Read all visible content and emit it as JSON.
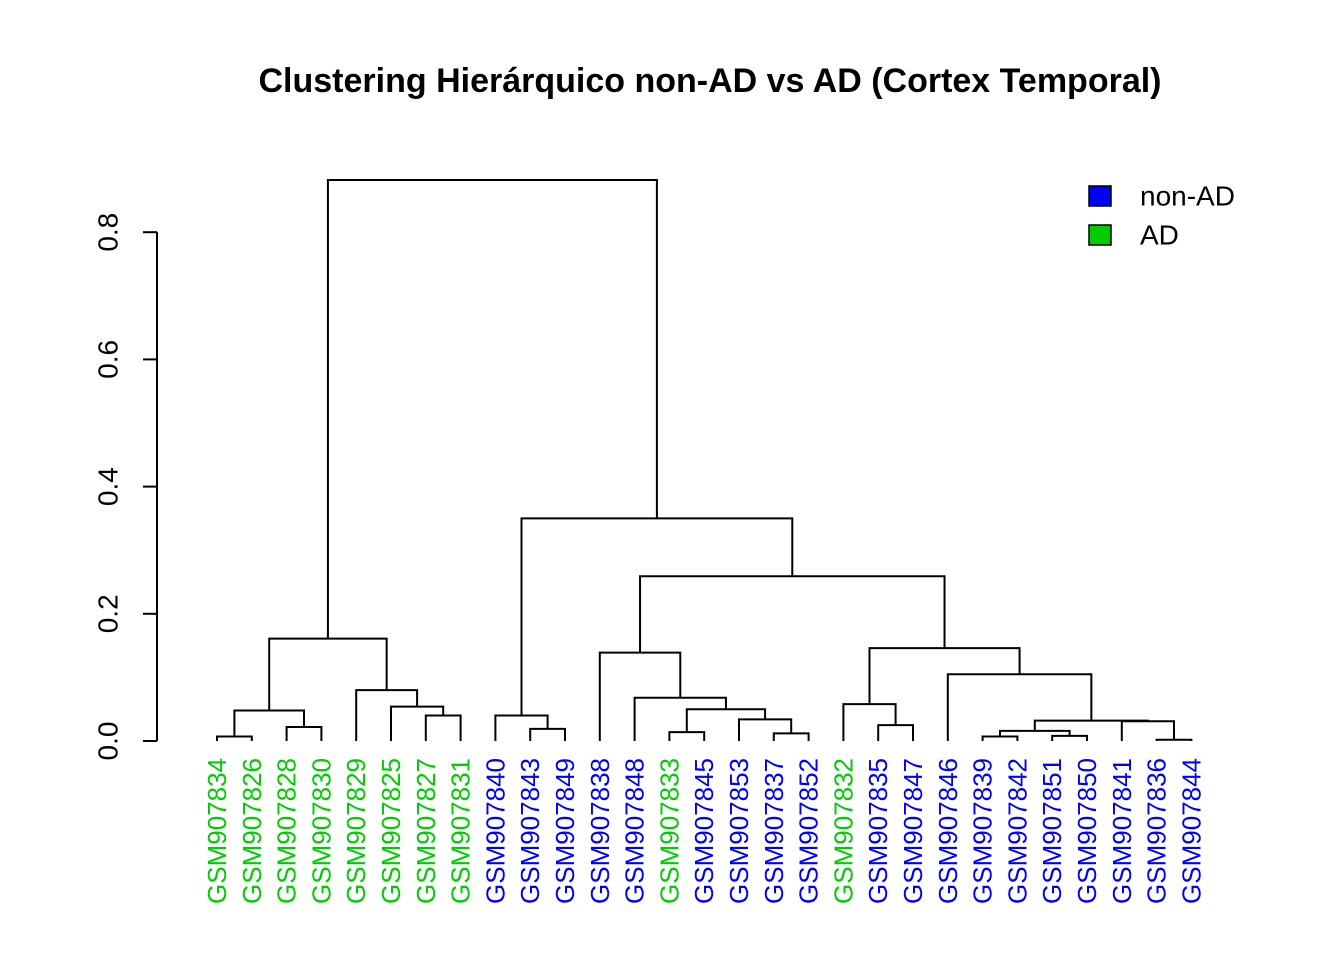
{
  "colors": {
    "nonAD": "#0000FF",
    "AD": "#00CD00",
    "line": "#000000"
  },
  "chart_data": {
    "type": "dendrogram",
    "title": "Clustering Hierárquico non-AD vs AD (Cortex Temporal)",
    "ylabel": "",
    "xlabel": "",
    "ylim": [
      0,
      0.88
    ],
    "yticks": [
      0.0,
      0.2,
      0.4,
      0.6,
      0.8
    ],
    "ytick_labels": [
      "0.0",
      "0.2",
      "0.4",
      "0.6",
      "0.8"
    ],
    "legend": {
      "placement": "top-right",
      "entries": [
        {
          "label": "non-AD",
          "group": "nonAD"
        },
        {
          "label": "AD",
          "group": "AD"
        }
      ]
    },
    "leaves": [
      {
        "label": "GSM907834",
        "group": "AD"
      },
      {
        "label": "GSM907826",
        "group": "AD"
      },
      {
        "label": "GSM907828",
        "group": "AD"
      },
      {
        "label": "GSM907830",
        "group": "AD"
      },
      {
        "label": "GSM907829",
        "group": "AD"
      },
      {
        "label": "GSM907825",
        "group": "AD"
      },
      {
        "label": "GSM907827",
        "group": "AD"
      },
      {
        "label": "GSM907831",
        "group": "AD"
      },
      {
        "label": "GSM907840",
        "group": "nonAD"
      },
      {
        "label": "GSM907843",
        "group": "nonAD"
      },
      {
        "label": "GSM907849",
        "group": "nonAD"
      },
      {
        "label": "GSM907838",
        "group": "nonAD"
      },
      {
        "label": "GSM907848",
        "group": "nonAD"
      },
      {
        "label": "GSM907833",
        "group": "AD"
      },
      {
        "label": "GSM907845",
        "group": "nonAD"
      },
      {
        "label": "GSM907853",
        "group": "nonAD"
      },
      {
        "label": "GSM907837",
        "group": "nonAD"
      },
      {
        "label": "GSM907852",
        "group": "nonAD"
      },
      {
        "label": "GSM907832",
        "group": "AD"
      },
      {
        "label": "GSM907835",
        "group": "nonAD"
      },
      {
        "label": "GSM907847",
        "group": "nonAD"
      },
      {
        "label": "GSM907846",
        "group": "nonAD"
      },
      {
        "label": "GSM907839",
        "group": "nonAD"
      },
      {
        "label": "GSM907842",
        "group": "nonAD"
      },
      {
        "label": "GSM907851",
        "group": "nonAD"
      },
      {
        "label": "GSM907850",
        "group": "nonAD"
      },
      {
        "label": "GSM907841",
        "group": "nonAD"
      },
      {
        "label": "GSM907836",
        "group": "nonAD"
      },
      {
        "label": "GSM907844",
        "group": "nonAD"
      }
    ],
    "merges": [
      [
        -1,
        -2,
        0.007
      ],
      [
        -3,
        -4,
        0.022
      ],
      [
        1,
        2,
        0.048
      ],
      [
        -7,
        -8,
        0.04
      ],
      [
        -6,
        4,
        0.054
      ],
      [
        -5,
        5,
        0.08
      ],
      [
        3,
        6,
        0.161
      ],
      [
        -10,
        -11,
        0.019
      ],
      [
        -9,
        8,
        0.04
      ],
      [
        -14,
        -15,
        0.014
      ],
      [
        -17,
        -18,
        0.012
      ],
      [
        -16,
        11,
        0.034
      ],
      [
        10,
        12,
        0.05
      ],
      [
        -13,
        13,
        0.068
      ],
      [
        -12,
        14,
        0.139
      ],
      [
        -20,
        -21,
        0.025
      ],
      [
        -19,
        16,
        0.058
      ],
      [
        -23,
        -24,
        0.007
      ],
      [
        -25,
        -26,
        0.008
      ],
      [
        18,
        19,
        0.016
      ],
      [
        -28,
        -29,
        0.002
      ],
      [
        -27,
        21,
        0.031
      ],
      [
        20,
        22,
        0.032
      ],
      [
        -22,
        23,
        0.105
      ],
      [
        17,
        24,
        0.146
      ],
      [
        15,
        25,
        0.259
      ],
      [
        9,
        26,
        0.35
      ],
      [
        7,
        27,
        0.882
      ]
    ]
  }
}
